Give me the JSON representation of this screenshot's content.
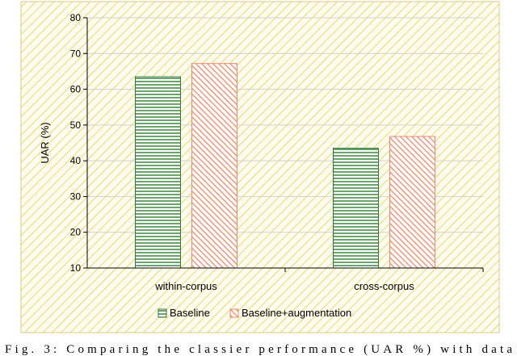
{
  "chart_data": {
    "type": "bar",
    "categories": [
      "within-corpus",
      "cross-corpus"
    ],
    "series": [
      {
        "name": "Baseline",
        "values": [
          63.5,
          43.5
        ],
        "color": "#2e7d32",
        "pattern": "horizontal-lines"
      },
      {
        "name": "Baseline+augmentation",
        "values": [
          67.2,
          46.8
        ],
        "color": "#f08a6b",
        "pattern": "diagonal-lines"
      }
    ],
    "title": "",
    "xlabel": "",
    "ylabel": "UAR (%)",
    "ylim": [
      10,
      80
    ],
    "yticks": [
      10,
      20,
      30,
      40,
      50,
      60,
      70,
      80
    ],
    "grid": true,
    "legend_position": "bottom",
    "background": "diagonal-hatch-yellow",
    "background_color": "#f5e79a"
  },
  "caption": "Fig. 3: Comparing the classier performance (UAR %) with data"
}
